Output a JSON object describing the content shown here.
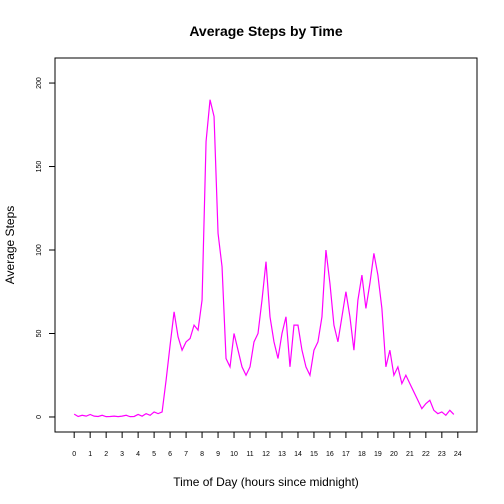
{
  "chart_data": {
    "type": "line",
    "title": "Average Steps by Time",
    "xlabel": "Time of Day (hours since midnight)",
    "ylabel": "Average Steps",
    "x": [
      0,
      0.25,
      0.5,
      0.75,
      1,
      1.25,
      1.5,
      1.75,
      2,
      2.25,
      2.5,
      2.75,
      3,
      3.25,
      3.5,
      3.75,
      4,
      4.25,
      4.5,
      4.75,
      5,
      5.25,
      5.5,
      5.75,
      6,
      6.25,
      6.5,
      6.75,
      7,
      7.25,
      7.5,
      7.75,
      8,
      8.25,
      8.5,
      8.75,
      9,
      9.25,
      9.5,
      9.75,
      10,
      10.25,
      10.5,
      10.75,
      11,
      11.25,
      11.5,
      11.75,
      12,
      12.25,
      12.5,
      12.75,
      13,
      13.25,
      13.5,
      13.75,
      14,
      14.25,
      14.5,
      14.75,
      15,
      15.25,
      15.5,
      15.75,
      16,
      16.25,
      16.5,
      16.75,
      17,
      17.25,
      17.5,
      17.75,
      18,
      18.25,
      18.5,
      18.75,
      19,
      19.25,
      19.5,
      19.75,
      20,
      20.25,
      20.5,
      20.75,
      21,
      21.25,
      21.5,
      21.75,
      22,
      22.25,
      22.5,
      22.75,
      23,
      23.25,
      23.5,
      23.75
    ],
    "series": [
      {
        "name": "Average Steps",
        "color": "#ff00ff",
        "values": [
          1.7,
          0.3,
          1,
          0.5,
          1.5,
          0.5,
          0.3,
          1,
          0.2,
          0.3,
          0.5,
          0.2,
          0.5,
          1,
          0.2,
          0.3,
          1.5,
          0.5,
          2,
          1,
          3,
          2,
          3,
          22,
          43,
          63,
          48,
          40,
          45,
          47,
          55,
          52,
          70,
          165,
          190,
          180,
          110,
          90,
          35,
          30,
          50,
          40,
          30,
          25,
          30,
          45,
          50,
          70,
          93,
          60,
          45,
          35,
          50,
          60,
          30,
          55,
          55,
          40,
          30,
          25,
          40,
          45,
          60,
          100,
          80,
          55,
          45,
          60,
          75,
          60,
          40,
          70,
          85,
          65,
          80,
          98,
          85,
          65,
          30,
          40,
          25,
          30,
          20,
          25,
          20,
          15,
          10,
          5,
          8,
          10,
          4,
          2,
          3,
          1,
          4,
          1.5
        ]
      }
    ],
    "xlim": [
      -1.2,
      25.2
    ],
    "ylim": [
      -9,
      215
    ],
    "xticks": [
      0,
      1,
      2,
      3,
      4,
      5,
      6,
      7,
      8,
      9,
      10,
      11,
      12,
      13,
      14,
      15,
      16,
      17,
      18,
      19,
      20,
      21,
      22,
      23,
      24
    ],
    "yticks": [
      0,
      50,
      100,
      150,
      200
    ]
  }
}
